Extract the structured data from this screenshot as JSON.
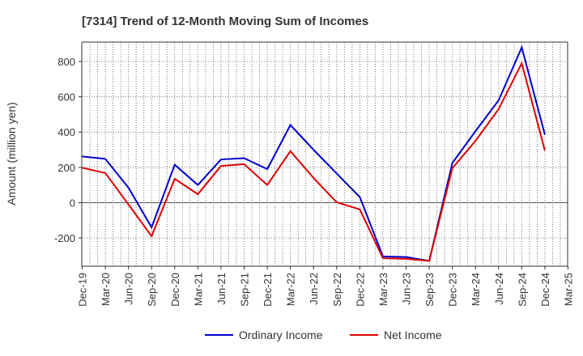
{
  "chart_data": {
    "type": "line",
    "title": "[7314]  Trend of 12-Month Moving Sum of Incomes",
    "xlabel": "",
    "ylabel": "Amount (million yen)",
    "ylim": [
      -360,
      910
    ],
    "yticks": [
      -200,
      0,
      200,
      400,
      600,
      800
    ],
    "categories": [
      "Dec-19",
      "Mar-20",
      "Jun-20",
      "Sep-20",
      "Dec-20",
      "Mar-21",
      "Jun-21",
      "Sep-21",
      "Dec-21",
      "Mar-22",
      "Jun-22",
      "Sep-22",
      "Dec-22",
      "Mar-23",
      "Jun-23",
      "Sep-23",
      "Dec-23",
      "Mar-24",
      "Jun-24",
      "Sep-24",
      "Dec-24",
      "Mar-25"
    ],
    "series": [
      {
        "name": "Ordinary Income",
        "color": "#0000cc",
        "values": [
          262,
          248,
          85,
          -140,
          215,
          100,
          245,
          252,
          190,
          440,
          300,
          165,
          32,
          -305,
          -308,
          -330,
          225,
          405,
          580,
          880,
          385,
          null
        ]
      },
      {
        "name": "Net Income",
        "color": "#dd0000",
        "values": [
          198,
          168,
          -10,
          -190,
          135,
          48,
          208,
          218,
          100,
          292,
          140,
          2,
          -38,
          -315,
          -318,
          -330,
          195,
          350,
          530,
          790,
          295,
          null
        ]
      }
    ],
    "grid": true,
    "legend": "bottom-center"
  }
}
